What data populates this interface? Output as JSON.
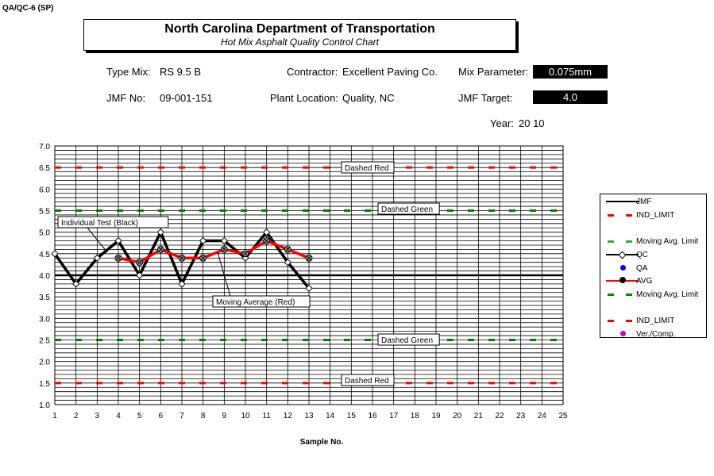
{
  "form_id": "QA/QC-6 (SP)",
  "header": {
    "title": "North Carolina Department of Transportation",
    "subtitle": "Hot Mix Asphalt Quality Control Chart"
  },
  "info": {
    "type_mix_label": "Type Mix:",
    "type_mix": "RS 9.5 B",
    "contractor_label": "Contractor:",
    "contractor": "Excellent Paving Co.",
    "mix_param_label": "Mix Parameter:",
    "mix_param": "0.075mm",
    "jmf_no_label": "JMF No:",
    "jmf_no": "09-001-151",
    "plant_label": "Plant Location:",
    "plant": "Quality, NC",
    "jmf_target_label": "JMF Target:",
    "jmf_target": "4.0",
    "year_label": "Year:",
    "year": "20 10"
  },
  "legend": [
    "JMF",
    "IND_LIMIT",
    "Moving Avg. Limit",
    "QC",
    "QA",
    "AVG",
    "Moving Avg. Limit",
    "IND_LIMIT",
    "Ver./Comp."
  ],
  "chart_data": {
    "type": "line",
    "xlabel": "Sample No.",
    "ylabel": "",
    "xlim": [
      1,
      25
    ],
    "ylim": [
      1.0,
      7.0
    ],
    "y_ticks": [
      "7.0",
      "6.5",
      "6.0",
      "5.5",
      "5.0",
      "4.5",
      "4.0",
      "3.5",
      "3.0",
      "2.5",
      "2.0",
      "1.5",
      "1.0"
    ],
    "x": [
      1,
      2,
      3,
      4,
      5,
      6,
      7,
      8,
      9,
      10,
      11,
      12,
      13,
      14,
      15,
      16,
      17,
      18,
      19,
      20,
      21,
      22,
      23,
      24,
      25
    ],
    "series": [
      {
        "name": "QC",
        "x": [
          1,
          2,
          3,
          4,
          5,
          6,
          7,
          8,
          9,
          10,
          11,
          12,
          13
        ],
        "values": [
          4.5,
          3.8,
          4.4,
          4.8,
          4.0,
          5.0,
          3.8,
          4.8,
          4.8,
          4.4,
          5.0,
          4.3,
          3.7
        ],
        "color": "#000000"
      },
      {
        "name": "AVG",
        "x": [
          4,
          5,
          6,
          7,
          8,
          9,
          10,
          11,
          12,
          13
        ],
        "values": [
          4.4,
          4.3,
          4.6,
          4.4,
          4.4,
          4.6,
          4.5,
          4.8,
          4.6,
          4.4
        ],
        "color": "#ff0000"
      }
    ],
    "reference_lines": [
      {
        "name": "JMF",
        "value": 4.0,
        "color": "#000000"
      },
      {
        "name": "IND_LIMIT upper",
        "value": 6.5,
        "color": "#ff0000"
      },
      {
        "name": "IND_LIMIT lower",
        "value": 1.5,
        "color": "#ff0000"
      },
      {
        "name": "Moving Avg. Limit upper",
        "value": 5.5,
        "color": "#008000"
      },
      {
        "name": "Moving Avg. Limit lower",
        "value": 2.5,
        "color": "#008000"
      }
    ],
    "annotations": [
      "Individual Test (Black)",
      "Moving Average (Red)",
      "Dashed Red",
      "Dashed Green",
      "Dashed Green",
      "Dashed Red"
    ]
  }
}
